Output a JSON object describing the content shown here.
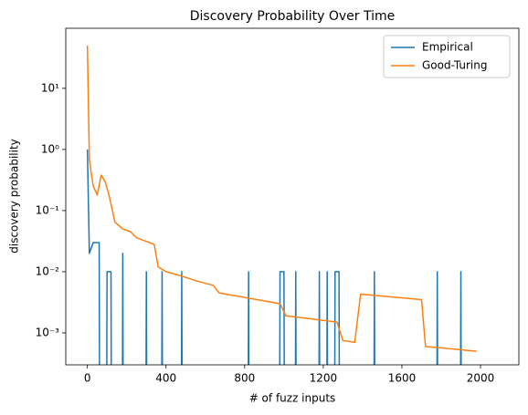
{
  "chart_data": {
    "type": "line",
    "title": "Discovery Probability Over Time",
    "xlabel": "# of fuzz inputs",
    "ylabel": "discovery probability",
    "yscale": "log",
    "legend": "upper right",
    "xlim": [
      -110,
      2195
    ],
    "ylim": [
      0.0003,
      96
    ],
    "xticks": [
      0,
      400,
      800,
      1200,
      1600,
      2000
    ],
    "yticks": [
      {
        "value": 0.001,
        "label": "10⁻³"
      },
      {
        "value": 0.01,
        "label": "10⁻²"
      },
      {
        "value": 0.1,
        "label": "10⁻¹"
      },
      {
        "value": 1,
        "label": "10⁰"
      },
      {
        "value": 10,
        "label": "10¹"
      }
    ],
    "series": [
      {
        "name": "Empirical",
        "color": "#1f77b4",
        "x": [
          0,
          10,
          30,
          60,
          62,
          98,
          100,
          120,
          122,
          178,
          180,
          182,
          298,
          300,
          302,
          378,
          380,
          382,
          478,
          480,
          482,
          818,
          820,
          822,
          978,
          980,
          1000,
          1002,
          1058,
          1060,
          1062,
          1178,
          1180,
          1182,
          1218,
          1220,
          1222,
          1258,
          1260,
          1280,
          1282,
          1458,
          1460,
          1462,
          1778,
          1780,
          1782,
          1898,
          1900,
          1902,
          1990
        ],
        "values": [
          1,
          0.02,
          0.03,
          0.03,
          0,
          0,
          0.01,
          0.01,
          0,
          0,
          0.02,
          0,
          0,
          0.01,
          0,
          0,
          0.01,
          0,
          0,
          0.01,
          0,
          0,
          0.01,
          0,
          0,
          0.01,
          0.01,
          0,
          0,
          0.01,
          0,
          0,
          0.01,
          0,
          0,
          0.01,
          0,
          0,
          0.01,
          0.01,
          0,
          0,
          0.01,
          0,
          0,
          0.01,
          0,
          0,
          0.01,
          0,
          0
        ]
      },
      {
        "name": "Good-Turing",
        "color": "#ff7f0e",
        "x": [
          0,
          10,
          20,
          30,
          50,
          70,
          90,
          110,
          140,
          180,
          220,
          250,
          340,
          360,
          400,
          480,
          560,
          640,
          670,
          980,
          1010,
          1200,
          1270,
          1300,
          1360,
          1390,
          1700,
          1720,
          1980
        ],
        "values": [
          50,
          0.7,
          0.4,
          0.25,
          0.18,
          0.38,
          0.3,
          0.18,
          0.065,
          0.05,
          0.045,
          0.036,
          0.028,
          0.012,
          0.01,
          0.0085,
          0.007,
          0.006,
          0.0045,
          0.003,
          0.0019,
          0.0016,
          0.0015,
          0.00075,
          0.0007,
          0.0043,
          0.0035,
          0.0006,
          0.0005
        ]
      }
    ]
  }
}
